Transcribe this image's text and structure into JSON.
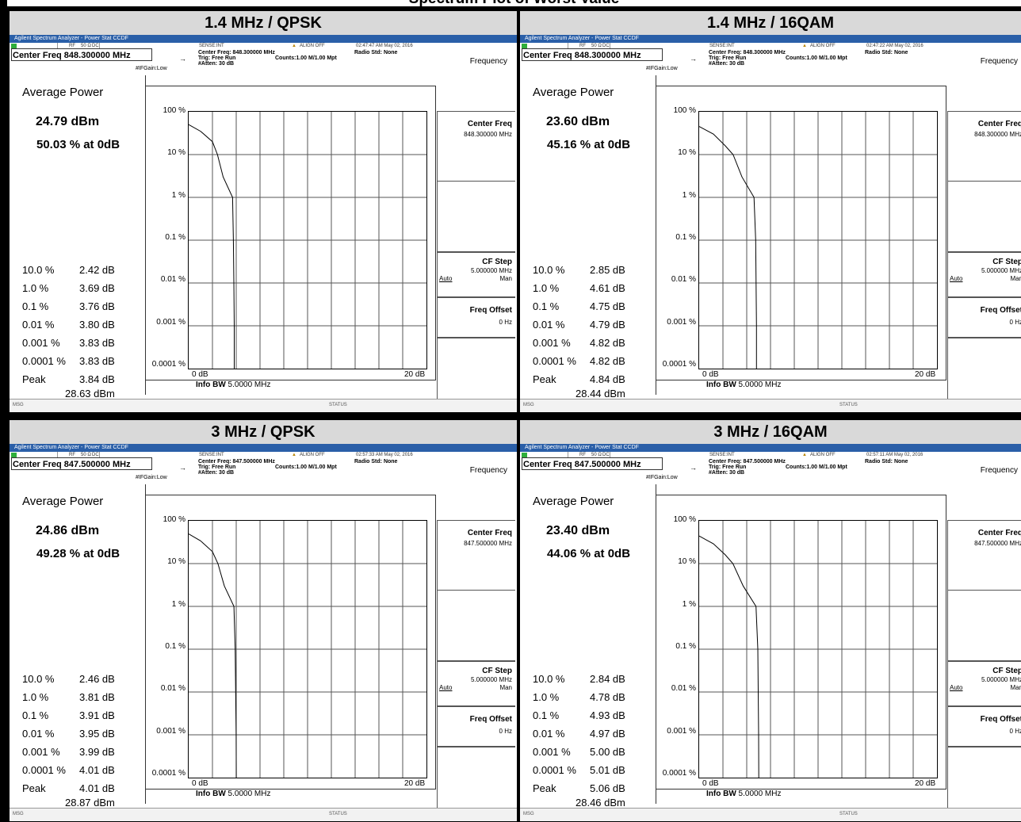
{
  "banner_title": "Spectrum Plot of Worst Value",
  "app_title": "Agilent Spectrum Analyzer - Power Stat CCDF",
  "status": {
    "rf": "RF",
    "imp": "50 Ω",
    "dc": "DC",
    "sense": "SENSE:INT",
    "align": "ALIGN OFF"
  },
  "meas": {
    "trig": "Trig: Free Run",
    "counts": "Counts:1.00 M/1.00 Mpt",
    "radio": "Radio Std: None",
    "ifgain": "#IFGain:Low",
    "atten": "#Atten: 30 dB"
  },
  "labels": {
    "average_power": "Average Power",
    "peak": "Peak",
    "frequency": "Frequency",
    "center_freq": "Center Freq",
    "cf_step": "CF Step",
    "cf_step_val": "5.000000 MHz",
    "auto": "Auto",
    "man": "Man",
    "freq_offset": "Freq Offset",
    "freq_offset_val": "0 Hz",
    "info_bw_label": "Info BW",
    "info_bw_val": "5.0000 MHz",
    "msg": "MSG",
    "status": "STATUS",
    "x_start": "0 dB",
    "x_end": "20 dB"
  },
  "y_ticks": [
    "100 %",
    "10 %",
    "1 %",
    "0.1 %",
    "0.01 %",
    "0.001 %",
    "0.0001 %"
  ],
  "stat_labels": [
    "10.0 %",
    "1.0 %",
    "0.1 %",
    "0.01 %",
    "0.001 %",
    "0.0001 %"
  ],
  "panels": [
    {
      "header": "1.4 MHz / QPSK",
      "timestamp": "02:47:47 AM May 02, 2016",
      "center_freq_title": "Center Freq 848.300000 MHz",
      "center_freq_sub": "Center Freq: 848.300000 MHz",
      "center_freq_sk": "848.300000 MHz",
      "avg_power": "24.79 dBm",
      "pct_at_0db": "50.03 % at 0dB",
      "stats": [
        "2.42 dB",
        "3.69 dB",
        "3.76 dB",
        "3.80 dB",
        "3.83 dB",
        "3.83 dB"
      ],
      "peak_db": "3.84 dB",
      "peak_dbm": "28.63 dBm",
      "curve": [
        [
          0,
          50.03
        ],
        [
          1,
          35
        ],
        [
          2,
          20
        ],
        [
          2.42,
          10
        ],
        [
          2.9,
          3
        ],
        [
          3.69,
          1
        ],
        [
          3.76,
          0.1
        ],
        [
          3.8,
          0.01
        ],
        [
          3.83,
          0.001
        ],
        [
          3.83,
          0.0001
        ]
      ]
    },
    {
      "header": "1.4 MHz / 16QAM",
      "timestamp": "02:47:22 AM May 02, 2016",
      "center_freq_title": "Center Freq 848.300000 MHz",
      "center_freq_sub": "Center Freq: 848.300000 MHz",
      "center_freq_sk": "848.300000 MHz",
      "avg_power": "23.60 dBm",
      "pct_at_0db": "45.16 % at 0dB",
      "stats": [
        "2.85 dB",
        "4.61 dB",
        "4.75 dB",
        "4.79 dB",
        "4.82 dB",
        "4.82 dB"
      ],
      "peak_db": "4.84 dB",
      "peak_dbm": "28.44 dBm",
      "curve": [
        [
          0,
          45.16
        ],
        [
          1.2,
          30
        ],
        [
          2.2,
          16
        ],
        [
          2.85,
          10
        ],
        [
          3.6,
          3
        ],
        [
          4.61,
          1
        ],
        [
          4.75,
          0.1
        ],
        [
          4.79,
          0.01
        ],
        [
          4.82,
          0.001
        ],
        [
          4.82,
          0.0001
        ]
      ]
    },
    {
      "header": "3 MHz / QPSK",
      "timestamp": "02:57:33 AM May 02, 2016",
      "center_freq_title": "Center Freq 847.500000 MHz",
      "center_freq_sub": "Center Freq: 847.500000 MHz",
      "center_freq_sk": "847.500000 MHz",
      "avg_power": "24.86 dBm",
      "pct_at_0db": "49.28 % at 0dB",
      "stats": [
        "2.46 dB",
        "3.81 dB",
        "3.91 dB",
        "3.95 dB",
        "3.99 dB",
        "4.01 dB"
      ],
      "peak_db": "4.01 dB",
      "peak_dbm": "28.87 dBm",
      "curve": [
        [
          0,
          49.28
        ],
        [
          1,
          34
        ],
        [
          2,
          19
        ],
        [
          2.46,
          10
        ],
        [
          3,
          3
        ],
        [
          3.81,
          1
        ],
        [
          3.91,
          0.1
        ],
        [
          3.95,
          0.01
        ],
        [
          3.99,
          0.001
        ],
        [
          4.01,
          0.0001
        ]
      ]
    },
    {
      "header": "3 MHz / 16QAM",
      "timestamp": "02:57:11 AM May 02, 2016",
      "center_freq_title": "Center Freq 847.500000 MHz",
      "center_freq_sub": "Center Freq: 847.500000 MHz",
      "center_freq_sk": "847.500000 MHz",
      "avg_power": "23.40 dBm",
      "pct_at_0db": "44.06 % at 0dB",
      "stats": [
        "2.84 dB",
        "4.78 dB",
        "4.93 dB",
        "4.97 dB",
        "5.00 dB",
        "5.01 dB"
      ],
      "peak_db": "5.06 dB",
      "peak_dbm": "28.46 dBm",
      "curve": [
        [
          0,
          44.06
        ],
        [
          1.2,
          29
        ],
        [
          2.2,
          16
        ],
        [
          2.84,
          10
        ],
        [
          3.7,
          3
        ],
        [
          4.78,
          1
        ],
        [
          4.93,
          0.1
        ],
        [
          4.97,
          0.01
        ],
        [
          5.0,
          0.001
        ],
        [
          5.01,
          0.0001
        ]
      ]
    }
  ],
  "chart_data": [
    {
      "type": "line",
      "title": "1.4 MHz / QPSK",
      "x_range_db": [
        0,
        20
      ],
      "y_scale": "log",
      "y_range_percent": [
        0.0001,
        100
      ],
      "series": [
        {
          "x": [
            0,
            1,
            2,
            2.42,
            2.9,
            3.69,
            3.76,
            3.8,
            3.83,
            3.83
          ],
          "y": [
            50.03,
            35,
            20,
            10,
            3,
            1,
            0.1,
            0.01,
            0.001,
            0.0001
          ]
        }
      ]
    },
    {
      "type": "line",
      "title": "1.4 MHz / 16QAM",
      "x_range_db": [
        0,
        20
      ],
      "y_scale": "log",
      "y_range_percent": [
        0.0001,
        100
      ],
      "series": [
        {
          "x": [
            0,
            1.2,
            2.2,
            2.85,
            3.6,
            4.61,
            4.75,
            4.79,
            4.82,
            4.82
          ],
          "y": [
            45.16,
            30,
            16,
            10,
            3,
            1,
            0.1,
            0.01,
            0.001,
            0.0001
          ]
        }
      ]
    },
    {
      "type": "line",
      "title": "3 MHz / QPSK",
      "x_range_db": [
        0,
        20
      ],
      "y_scale": "log",
      "y_range_percent": [
        0.0001,
        100
      ],
      "series": [
        {
          "x": [
            0,
            1,
            2,
            2.46,
            3,
            3.81,
            3.91,
            3.95,
            3.99,
            4.01
          ],
          "y": [
            49.28,
            34,
            19,
            10,
            3,
            1,
            0.1,
            0.01,
            0.001,
            0.0001
          ]
        }
      ]
    },
    {
      "type": "line",
      "title": "3 MHz / 16QAM",
      "x_range_db": [
        0,
        20
      ],
      "y_scale": "log",
      "y_range_percent": [
        0.0001,
        100
      ],
      "series": [
        {
          "x": [
            0,
            1.2,
            2.2,
            2.84,
            3.7,
            4.78,
            4.93,
            4.97,
            5.0,
            5.01
          ],
          "y": [
            44.06,
            29,
            16,
            10,
            3,
            1,
            0.1,
            0.01,
            0.001,
            0.0001
          ]
        }
      ]
    }
  ]
}
